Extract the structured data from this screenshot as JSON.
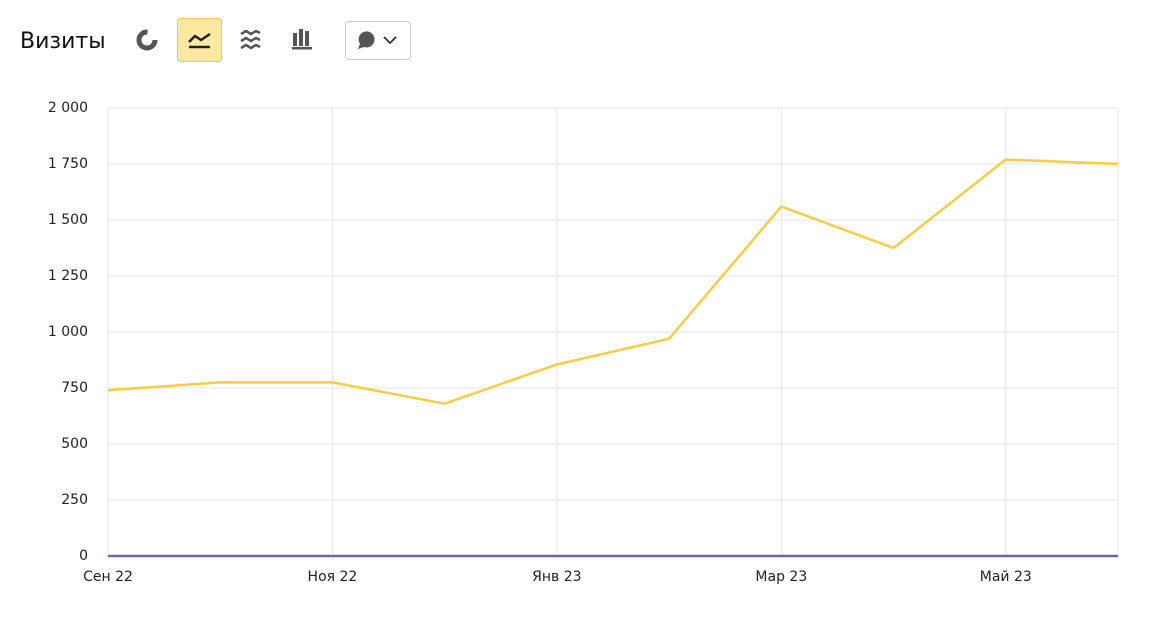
{
  "chart_data": {
    "type": "line",
    "title": "Визиты",
    "categories": [
      "Сен 22",
      null,
      "Ноя 22",
      null,
      "Янв 23",
      null,
      "Мар 23",
      null,
      "Май 23",
      null
    ],
    "series": [
      {
        "color": "#f8cd46",
        "values": [
          740,
          775,
          775,
          680,
          855,
          970,
          1560,
          1375,
          1770,
          1750
        ]
      },
      {
        "color": "#6f63b8",
        "values": [
          0,
          0,
          0,
          0,
          0,
          0,
          0,
          0,
          0,
          0
        ]
      }
    ],
    "ylim": [
      0,
      2000
    ],
    "yticks": [
      0,
      250,
      500,
      750,
      {
        "value": 1000,
        "label": "1 000"
      },
      {
        "value": 1250,
        "label": "1 250"
      },
      {
        "value": 1500,
        "label": "1 500"
      },
      {
        "value": 1750,
        "label": "1 750"
      },
      {
        "value": 2000,
        "label": "2 000"
      }
    ],
    "grid": true
  }
}
